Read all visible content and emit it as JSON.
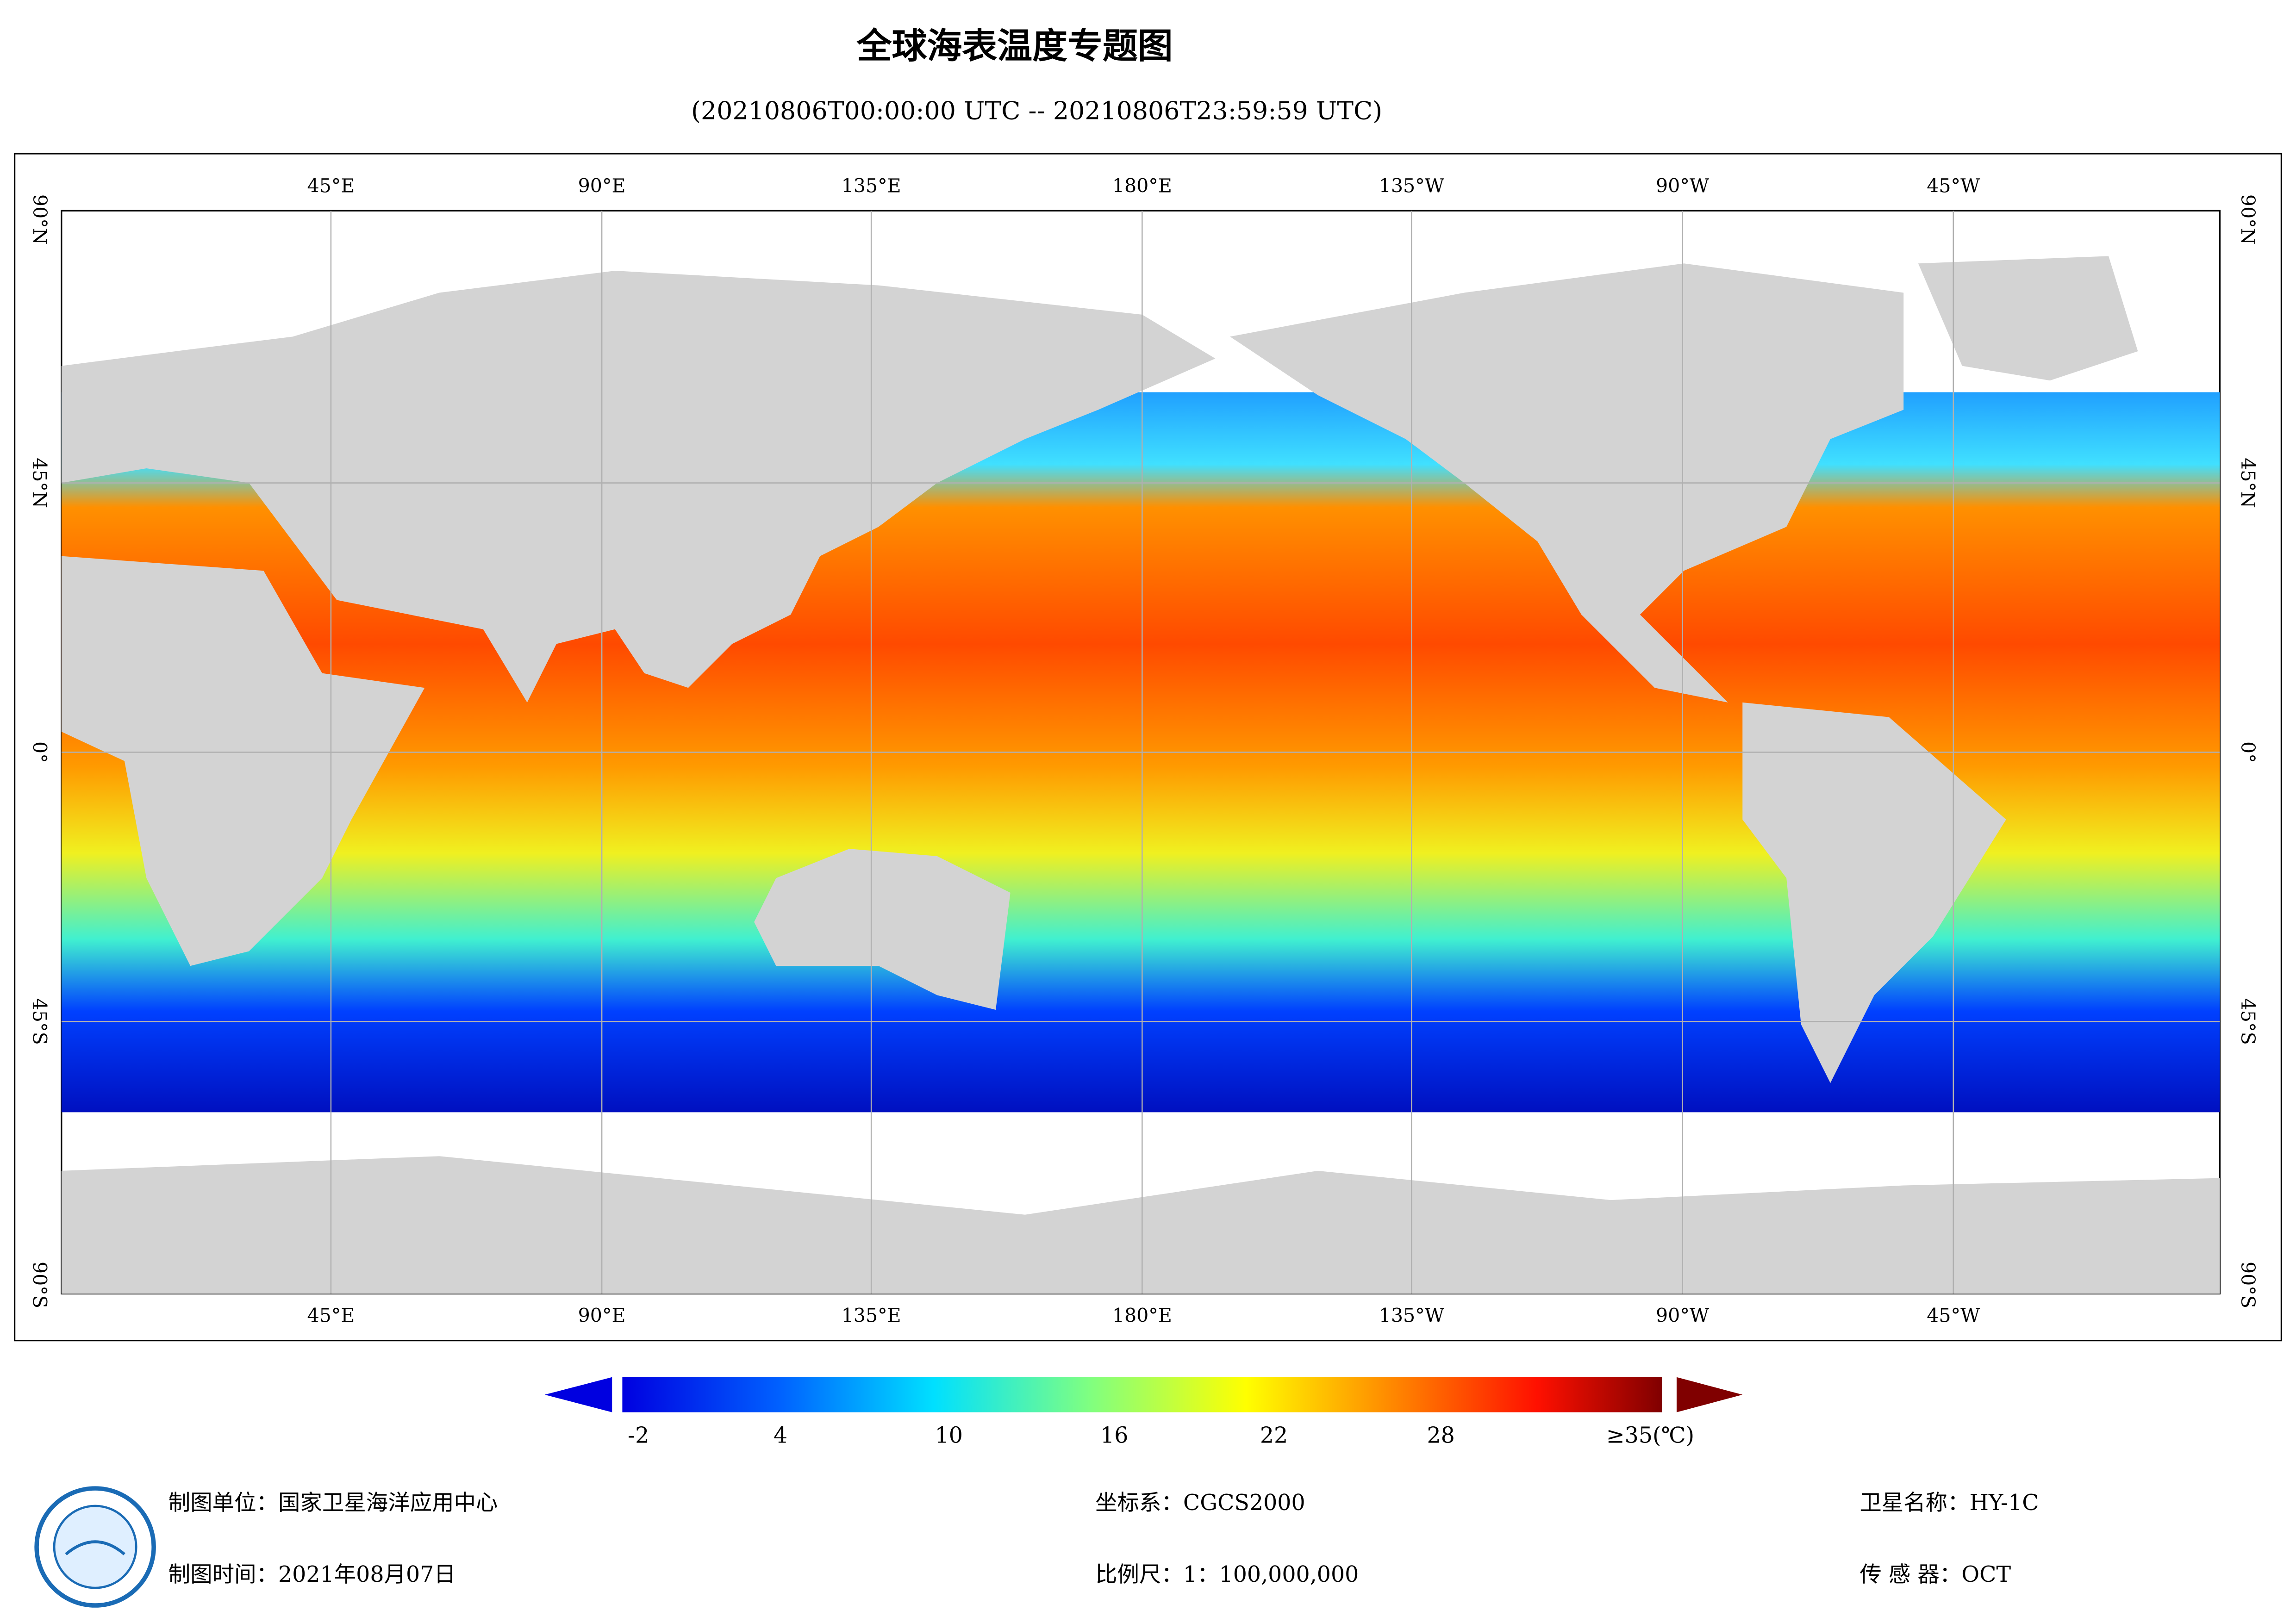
{
  "title": "全球海表温度专题图",
  "subtitle": "(20210806T00:00:00 UTC -- 20210806T23:59:59 UTC)",
  "map": {
    "lon_labels": [
      "45°E",
      "90°E",
      "135°E",
      "180°E",
      "135°W",
      "90°W",
      "45°W"
    ],
    "lat_labels": [
      "90°N",
      "45°N",
      "0°",
      "45°S",
      "90°S"
    ]
  },
  "colorbar": {
    "ticks": [
      "-2",
      "4",
      "10",
      "16",
      "22",
      "28",
      "≥35(℃)"
    ]
  },
  "footer": {
    "unit": "制图单位：国家卫星海洋应用中心",
    "time": "制图时间：2021年08月07日",
    "crs": "坐标系：CGCS2000",
    "scale": "比例尺：1：100,000,000",
    "satellite": "卫星名称：HY-1C",
    "sensor": "传 感 器：OCT"
  }
}
